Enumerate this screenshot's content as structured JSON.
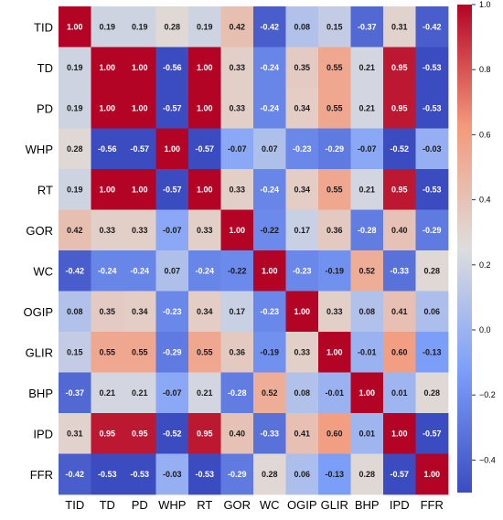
{
  "chart_data": {
    "type": "heatmap",
    "title": "",
    "xlabel": "",
    "ylabel": "",
    "variables": [
      "TID",
      "TD",
      "PD",
      "WHP",
      "RT",
      "GOR",
      "WC",
      "OGIP",
      "GLIR",
      "BHP",
      "IPD",
      "FFR"
    ],
    "matrix": [
      [
        1.0,
        0.19,
        0.19,
        0.28,
        0.19,
        0.42,
        -0.42,
        0.08,
        0.15,
        -0.37,
        0.31,
        -0.42
      ],
      [
        0.19,
        1.0,
        1.0,
        -0.56,
        1.0,
        0.33,
        -0.24,
        0.35,
        0.55,
        0.21,
        0.95,
        -0.53
      ],
      [
        0.19,
        1.0,
        1.0,
        -0.57,
        1.0,
        0.33,
        -0.24,
        0.34,
        0.55,
        0.21,
        0.95,
        -0.53
      ],
      [
        0.28,
        -0.56,
        -0.57,
        1.0,
        -0.57,
        -0.07,
        0.07,
        -0.23,
        -0.29,
        -0.07,
        -0.52,
        -0.03
      ],
      [
        0.19,
        1.0,
        1.0,
        -0.57,
        1.0,
        0.33,
        -0.24,
        0.34,
        0.55,
        0.21,
        0.95,
        -0.53
      ],
      [
        0.42,
        0.33,
        0.33,
        -0.07,
        0.33,
        1.0,
        -0.22,
        0.17,
        0.36,
        -0.28,
        0.4,
        -0.29
      ],
      [
        -0.42,
        -0.24,
        -0.24,
        0.07,
        -0.24,
        -0.22,
        1.0,
        -0.23,
        -0.19,
        0.52,
        -0.33,
        0.28
      ],
      [
        0.08,
        0.35,
        0.34,
        -0.23,
        0.34,
        0.17,
        -0.23,
        1.0,
        0.33,
        0.08,
        0.41,
        0.06
      ],
      [
        0.15,
        0.55,
        0.55,
        -0.29,
        0.55,
        0.36,
        -0.19,
        0.33,
        1.0,
        -0.01,
        0.6,
        -0.13
      ],
      [
        -0.37,
        0.21,
        0.21,
        -0.07,
        0.21,
        -0.28,
        0.52,
        0.08,
        -0.01,
        1.0,
        0.01,
        0.28
      ],
      [
        0.31,
        0.95,
        0.95,
        -0.52,
        0.95,
        0.4,
        -0.33,
        0.41,
        0.6,
        0.01,
        1.0,
        -0.57
      ],
      [
        -0.42,
        -0.53,
        -0.53,
        -0.03,
        -0.53,
        -0.29,
        0.28,
        0.06,
        -0.13,
        0.28,
        -0.57,
        1.0
      ]
    ],
    "colorbar": {
      "min": -0.5,
      "max": 1.0,
      "ticks": [
        1.0,
        0.8,
        0.6,
        0.4,
        0.2,
        0.0,
        -0.2,
        -0.4
      ],
      "tick_labels": [
        "1.0",
        "0.8",
        "0.6",
        "0.4",
        "0.2",
        "0.0",
        "−0.2",
        "−0.4"
      ],
      "colormap": "coolwarm"
    },
    "grid": false,
    "legend": "colorbar-right"
  }
}
